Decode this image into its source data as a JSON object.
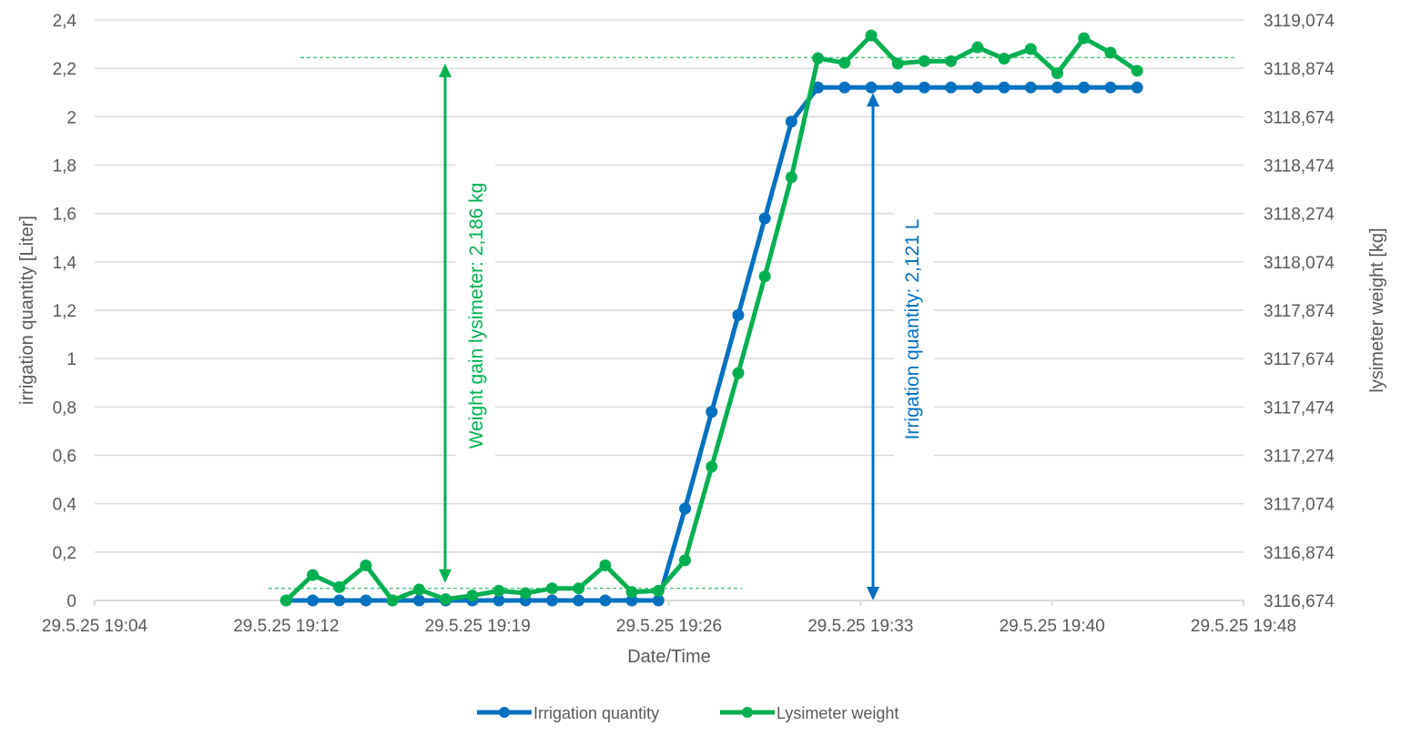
{
  "chart_data": {
    "type": "line",
    "xlabel": "Date/Time",
    "ylabel_left": "irrigation quantity [Liter]",
    "ylabel_right": "lysimeter weight [kg]",
    "x_unit": "minutes since 29.5.25 19:04",
    "xlim": [
      0,
      44
    ],
    "x_ticks": [
      0,
      7.333,
      14.667,
      22,
      29.333,
      36.667,
      44
    ],
    "x_tick_labels": [
      "29.5.25 19:04",
      "29.5.25 19:12",
      "29.5.25 19:19",
      "29.5.25 19:26",
      "29.5.25 19:33",
      "29.5.25 19:40",
      "29.5.25 19:48"
    ],
    "ylim_left": [
      0,
      2.4
    ],
    "y_ticks_left": [
      "0",
      "0,2",
      "0,4",
      "0,6",
      "0,8",
      "1",
      "1,2",
      "1,4",
      "1,6",
      "1,8",
      "2",
      "2,2",
      "2,4"
    ],
    "ylim_right": [
      3116.674,
      3119.074
    ],
    "y_ticks_right": [
      "3116,674",
      "3116,874",
      "3117,074",
      "3117,274",
      "3117,474",
      "3117,674",
      "3117,874",
      "3118,074",
      "3118,274",
      "3118,474",
      "3118,674",
      "3118,874",
      "3119,074"
    ],
    "grid": true,
    "legend_placement": "bottom",
    "x": [
      7.333,
      8.352,
      9.37,
      10.389,
      11.407,
      12.426,
      13.444,
      14.463,
      15.481,
      16.5,
      17.519,
      18.537,
      19.556,
      20.574,
      21.593,
      22.611,
      23.63,
      24.648,
      25.667,
      26.685,
      27.704,
      28.722,
      29.741,
      30.759,
      31.778,
      32.796,
      33.815,
      34.833,
      35.852,
      36.87,
      37.889,
      38.907,
      39.926
    ],
    "series": [
      {
        "name": "Irrigation quantity",
        "axis": "left",
        "color": "#0070C0",
        "values": [
          0,
          0,
          0,
          0,
          0,
          0,
          0,
          0,
          0,
          0,
          0,
          0,
          0,
          0,
          0,
          0.38,
          0.78,
          1.18,
          1.58,
          1.98,
          2.121,
          2.121,
          2.121,
          2.121,
          2.121,
          2.121,
          2.121,
          2.121,
          2.121,
          2.121,
          2.121,
          2.121,
          2.121
        ]
      },
      {
        "name": "Lysimeter weight",
        "axis": "right",
        "color": "#00B050",
        "values": [
          3116.674,
          3116.779,
          3116.729,
          3116.819,
          3116.674,
          3116.719,
          3116.679,
          3116.694,
          3116.714,
          3116.704,
          3116.724,
          3116.724,
          3116.819,
          3116.709,
          3116.714,
          3116.84,
          3117.227,
          3117.614,
          3118.014,
          3118.424,
          3118.916,
          3118.897,
          3119.01,
          3118.894,
          3118.904,
          3118.904,
          3118.961,
          3118.914,
          3118.954,
          3118.854,
          3118.999,
          3118.939,
          3118.864
        ]
      }
    ],
    "annotations": {
      "weight_gain": {
        "text": "Weight gain lysimeter: 2,186 kg",
        "color": "#00B050",
        "x": 17,
        "from": 0.05,
        "to": 2.235,
        "baseline_low": 0.05,
        "baseline_high": 2.245
      },
      "irrigation": {
        "text": "Irrigation quantity: 2,121 L",
        "color": "#0070C0",
        "x": 33,
        "from": 0,
        "to": 2.121
      }
    }
  }
}
